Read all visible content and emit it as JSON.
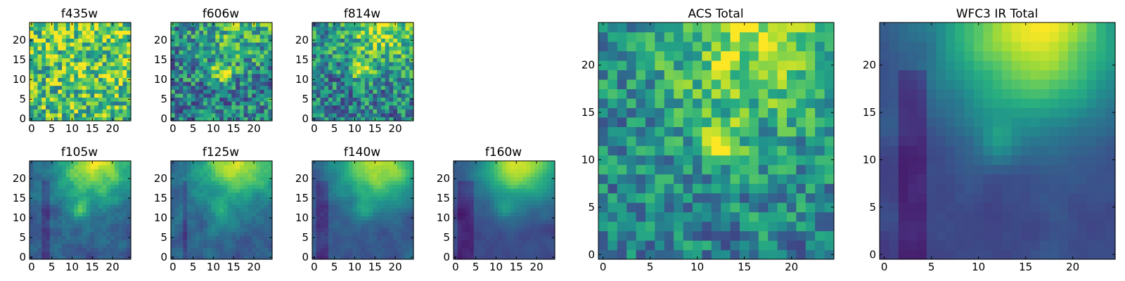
{
  "chart_data": [
    {
      "type": "heatmap",
      "title": "f435w",
      "grid_size": 25,
      "xlim": [
        0,
        25
      ],
      "ylim": [
        0,
        25
      ],
      "xticks": [
        0,
        5,
        10,
        15,
        20
      ],
      "yticks": [
        0,
        5,
        10,
        15,
        20
      ],
      "colormap": "viridis",
      "smoothness": 0.05,
      "blob": {
        "x": 12,
        "y": 12,
        "amp": 0.1
      },
      "corner": {
        "amp": 0.1
      },
      "base": 0.7,
      "noise": 0.35,
      "dark_columns": [],
      "seed": 11
    },
    {
      "type": "heatmap",
      "title": "f606w",
      "grid_size": 25,
      "xlim": [
        0,
        25
      ],
      "ylim": [
        0,
        25
      ],
      "xticks": [
        0,
        5,
        10,
        15,
        20
      ],
      "yticks": [
        0,
        5,
        10,
        15,
        20
      ],
      "colormap": "viridis",
      "smoothness": 0.1,
      "blob": {
        "x": 12,
        "y": 12,
        "amp": 0.45
      },
      "corner": {
        "amp": 0.25
      },
      "base": 0.45,
      "noise": 0.35,
      "dark_columns": [],
      "seed": 22
    },
    {
      "type": "heatmap",
      "title": "f814w",
      "grid_size": 25,
      "xlim": [
        0,
        25
      ],
      "ylim": [
        0,
        25
      ],
      "xticks": [
        0,
        5,
        10,
        15,
        20
      ],
      "yticks": [
        0,
        5,
        10,
        15,
        20
      ],
      "colormap": "viridis",
      "smoothness": 0.1,
      "blob": {
        "x": 12,
        "y": 12,
        "amp": 0.45
      },
      "corner": {
        "amp": 0.4
      },
      "base": 0.45,
      "noise": 0.35,
      "dark_columns": [],
      "seed": 33
    },
    {
      "type": "heatmap",
      "title": "f105w",
      "grid_size": 25,
      "xlim": [
        0,
        25
      ],
      "ylim": [
        0,
        25
      ],
      "xticks": [
        0,
        5,
        10,
        15,
        20
      ],
      "yticks": [
        0,
        5,
        10,
        15,
        20
      ],
      "colormap": "viridis",
      "smoothness": 0.55,
      "blob": {
        "x": 12,
        "y": 12,
        "amp": 0.3
      },
      "corner": {
        "amp": 0.6
      },
      "base": 0.3,
      "noise": 0.2,
      "dark_columns": [
        3,
        4
      ],
      "seed": 44
    },
    {
      "type": "heatmap",
      "title": "f125w",
      "grid_size": 25,
      "xlim": [
        0,
        25
      ],
      "ylim": [
        0,
        25
      ],
      "xticks": [
        0,
        5,
        10,
        15,
        20
      ],
      "yticks": [
        0,
        5,
        10,
        15,
        20
      ],
      "colormap": "viridis",
      "smoothness": 0.55,
      "blob": {
        "x": 12,
        "y": 12,
        "amp": 0.25
      },
      "corner": {
        "amp": 0.6
      },
      "base": 0.32,
      "noise": 0.18,
      "dark_columns": [
        3
      ],
      "seed": 55
    },
    {
      "type": "heatmap",
      "title": "f140w",
      "grid_size": 25,
      "xlim": [
        0,
        25
      ],
      "ylim": [
        0,
        25
      ],
      "xticks": [
        0,
        5,
        10,
        15,
        20
      ],
      "yticks": [
        0,
        5,
        10,
        15,
        20
      ],
      "colormap": "viridis",
      "smoothness": 0.6,
      "blob": {
        "x": 12,
        "y": 12,
        "amp": 0.2
      },
      "corner": {
        "amp": 0.65
      },
      "base": 0.28,
      "noise": 0.15,
      "dark_columns": [
        1,
        2,
        3
      ],
      "seed": 66
    },
    {
      "type": "heatmap",
      "title": "f160w",
      "grid_size": 25,
      "xlim": [
        0,
        25
      ],
      "ylim": [
        0,
        25
      ],
      "xticks": [
        0,
        5,
        10,
        15,
        20
      ],
      "yticks": [
        0,
        5,
        10,
        15,
        20
      ],
      "colormap": "viridis",
      "smoothness": 0.7,
      "blob": {
        "x": 12,
        "y": 12,
        "amp": 0.15
      },
      "corner": {
        "amp": 0.7
      },
      "base": 0.22,
      "noise": 0.12,
      "dark_columns": [
        1,
        2,
        3,
        4
      ],
      "seed": 77
    },
    {
      "type": "heatmap",
      "title": "ACS Total",
      "grid_size": 25,
      "xlim": [
        0,
        25
      ],
      "ylim": [
        0,
        25
      ],
      "xticks": [
        0,
        5,
        10,
        15,
        20
      ],
      "yticks": [
        0,
        5,
        10,
        15,
        20
      ],
      "colormap": "viridis",
      "smoothness": 0.15,
      "blob": {
        "x": 12,
        "y": 12,
        "amp": 0.5
      },
      "corner": {
        "amp": 0.45
      },
      "base": 0.45,
      "noise": 0.3,
      "dark_columns": [],
      "seed": 88
    },
    {
      "type": "heatmap",
      "title": "WFC3 IR Total",
      "grid_size": 25,
      "xlim": [
        0,
        25
      ],
      "ylim": [
        0,
        25
      ],
      "xticks": [
        0,
        5,
        10,
        15,
        20
      ],
      "yticks": [
        0,
        5,
        10,
        15,
        20
      ],
      "colormap": "viridis",
      "smoothness": 0.7,
      "blob": {
        "x": 12,
        "y": 12,
        "amp": 0.2
      },
      "corner": {
        "amp": 0.75
      },
      "base": 0.22,
      "noise": 0.1,
      "dark_columns": [
        2,
        3,
        4
      ],
      "seed": 99
    }
  ]
}
